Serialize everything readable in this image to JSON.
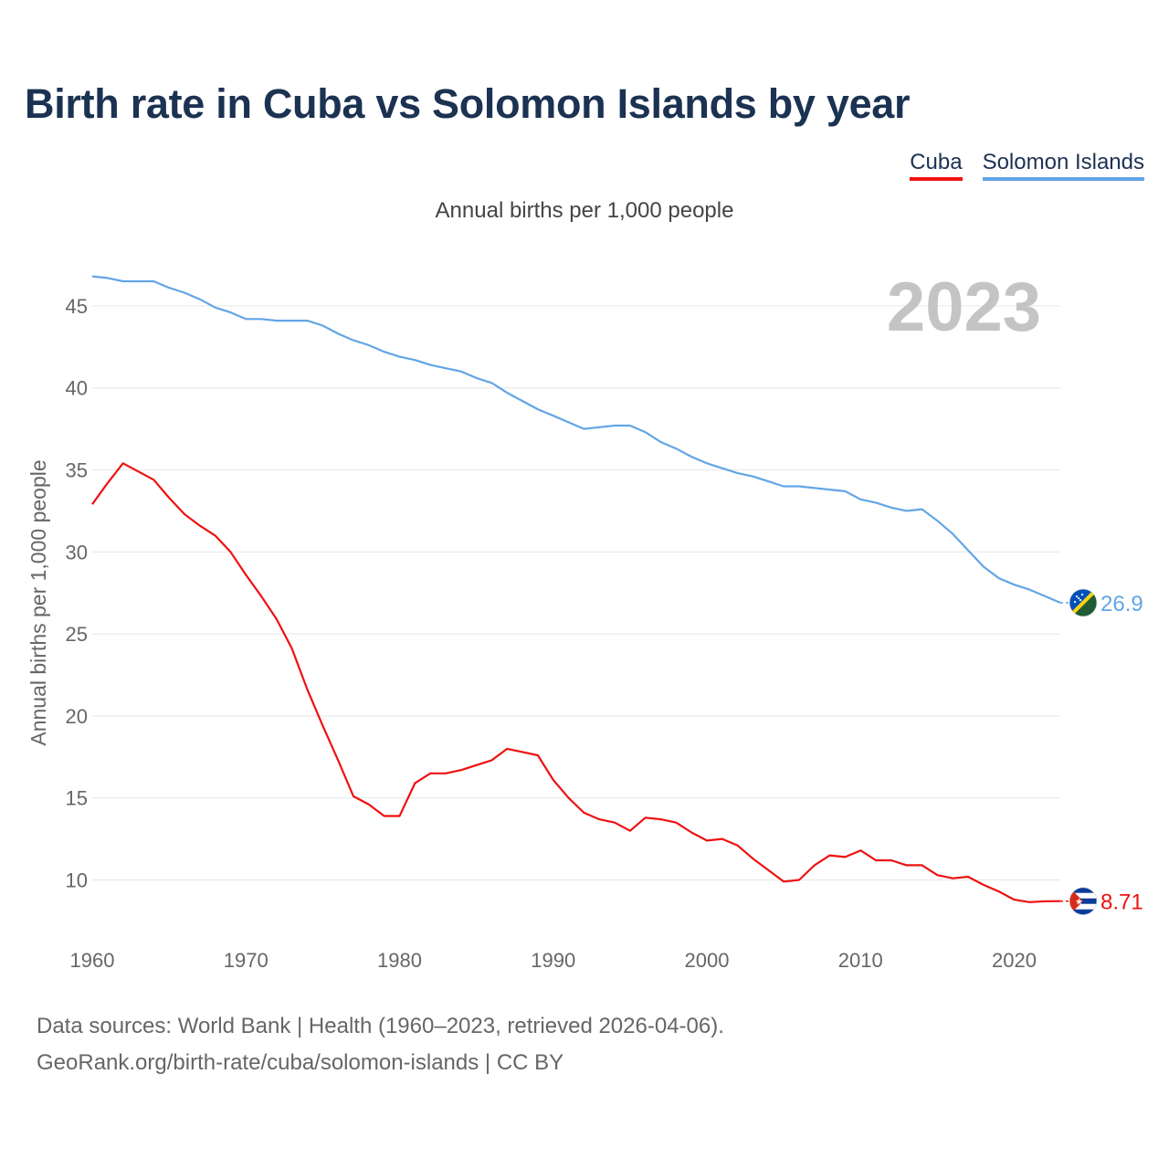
{
  "title": "Birth rate in Cuba vs Solomon Islands by year",
  "subtitle": "Annual births per 1,000 people",
  "legend": [
    {
      "name": "Cuba",
      "color": "#ee1111"
    },
    {
      "name": "Solomon Islands",
      "color": "#62a5e6"
    }
  ],
  "footer": {
    "line1": "Data sources: World Bank | Health (1960–2023, retrieved 2026-04-06).",
    "line2": "GeoRank.org/birth-rate/cuba/solomon-islands | CC BY"
  },
  "chart_data": {
    "type": "line",
    "title": "Birth rate in Cuba vs Solomon Islands by year",
    "subtitle": "Annual births per 1,000 people",
    "xlabel": "",
    "ylabel": "Annual births per 1,000 people",
    "xlim": [
      1960,
      2023
    ],
    "ylim": [
      6.3,
      47.5
    ],
    "xticks": [
      1960,
      1970,
      1980,
      1990,
      2000,
      2010,
      2020
    ],
    "yticks": [
      10,
      15,
      20,
      25,
      30,
      35,
      40,
      45
    ],
    "year_label": "2023",
    "grid": true,
    "x": [
      1960,
      1961,
      1962,
      1963,
      1964,
      1965,
      1966,
      1967,
      1968,
      1969,
      1970,
      1971,
      1972,
      1973,
      1974,
      1975,
      1976,
      1977,
      1978,
      1979,
      1980,
      1981,
      1982,
      1983,
      1984,
      1985,
      1986,
      1987,
      1988,
      1989,
      1990,
      1991,
      1992,
      1993,
      1994,
      1995,
      1996,
      1997,
      1998,
      1999,
      2000,
      2001,
      2002,
      2003,
      2004,
      2005,
      2006,
      2007,
      2008,
      2009,
      2010,
      2011,
      2012,
      2013,
      2014,
      2015,
      2016,
      2017,
      2018,
      2019,
      2020,
      2021,
      2022,
      2023
    ],
    "series": [
      {
        "name": "Cuba",
        "color": "#ee1111",
        "end_label": "8.71",
        "flag": "cuba",
        "values": [
          32.9,
          34.2,
          35.4,
          34.9,
          34.4,
          33.3,
          32.3,
          31.6,
          31.0,
          30.0,
          28.6,
          27.3,
          25.9,
          24.1,
          21.6,
          19.4,
          17.3,
          15.1,
          14.6,
          13.9,
          13.9,
          15.9,
          16.5,
          16.5,
          16.7,
          17.0,
          17.3,
          18.0,
          17.8,
          17.6,
          16.1,
          15.0,
          14.1,
          13.7,
          13.5,
          13.0,
          13.8,
          13.7,
          13.5,
          12.9,
          12.4,
          12.5,
          12.1,
          11.3,
          10.6,
          9.9,
          10.0,
          10.9,
          11.5,
          11.4,
          11.8,
          11.2,
          11.2,
          10.9,
          10.9,
          10.3,
          10.1,
          10.2,
          9.7,
          9.3,
          8.8,
          8.65,
          8.7,
          8.71
        ]
      },
      {
        "name": "Solomon Islands",
        "color": "#62a5e6",
        "end_label": "26.9",
        "flag": "solomon-islands",
        "values": [
          46.8,
          46.7,
          46.5,
          46.5,
          46.5,
          46.1,
          45.8,
          45.4,
          44.9,
          44.6,
          44.2,
          44.2,
          44.1,
          44.1,
          44.1,
          43.8,
          43.3,
          42.9,
          42.6,
          42.2,
          41.9,
          41.7,
          41.4,
          41.2,
          41.0,
          40.6,
          40.3,
          39.7,
          39.2,
          38.7,
          38.3,
          37.9,
          37.5,
          37.6,
          37.7,
          37.7,
          37.3,
          36.7,
          36.3,
          35.8,
          35.4,
          35.1,
          34.8,
          34.6,
          34.3,
          34.0,
          34.0,
          33.9,
          33.8,
          33.7,
          33.2,
          33.0,
          32.7,
          32.5,
          32.6,
          31.9,
          31.1,
          30.1,
          29.1,
          28.4,
          28.0,
          27.7,
          27.3,
          26.9
        ]
      }
    ]
  }
}
